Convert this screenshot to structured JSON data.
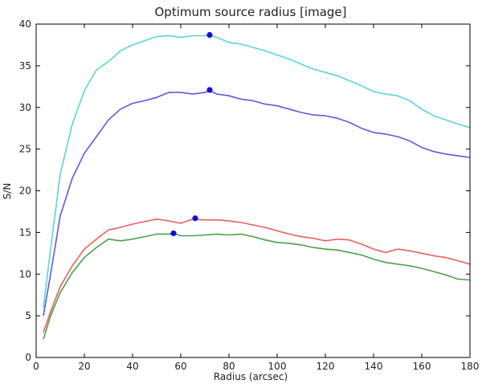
{
  "chart_data": {
    "type": "line",
    "title": "Optimum source radius [image]",
    "xlabel": "Radius (arcsec)",
    "ylabel": "S/N",
    "xlim": [
      0,
      180
    ],
    "ylim": [
      0,
      40
    ],
    "xticks": [
      0,
      20,
      40,
      60,
      80,
      100,
      120,
      140,
      160,
      180
    ],
    "yticks": [
      0,
      5,
      10,
      15,
      20,
      25,
      30,
      35,
      40
    ],
    "grid": false,
    "series": [
      {
        "color": "#5bd4d4",
        "x": [
          3,
          6,
          10,
          15,
          20,
          25,
          30,
          35,
          40,
          45,
          50,
          55,
          60,
          65,
          70,
          72,
          75,
          80,
          85,
          90,
          95,
          100,
          105,
          110,
          115,
          120,
          125,
          130,
          135,
          140,
          145,
          150,
          155,
          160,
          165,
          170,
          175,
          180
        ],
        "y": [
          6,
          13,
          22,
          28,
          32,
          34.5,
          35.5,
          36.8,
          37.5,
          38,
          38.5,
          38.6,
          38.4,
          38.6,
          38.6,
          38.7,
          38.4,
          37.8,
          37.6,
          37.2,
          36.8,
          36.3,
          35.8,
          35.2,
          34.6,
          34.2,
          33.8,
          33.2,
          32.6,
          31.9,
          31.6,
          31.4,
          30.8,
          29.8,
          29,
          28.5,
          28,
          27.6
        ],
        "optimum": {
          "x": 72,
          "y": 38.7
        }
      },
      {
        "color": "#5a5ae0",
        "x": [
          3,
          6,
          10,
          15,
          20,
          25,
          30,
          35,
          40,
          45,
          50,
          55,
          60,
          65,
          70,
          72,
          75,
          80,
          85,
          90,
          95,
          100,
          105,
          110,
          115,
          120,
          125,
          130,
          135,
          140,
          145,
          150,
          155,
          160,
          165,
          170,
          175,
          180
        ],
        "y": [
          5,
          10,
          17,
          21.5,
          24.5,
          26.5,
          28.5,
          29.8,
          30.5,
          30.8,
          31.2,
          31.8,
          31.8,
          31.6,
          31.8,
          32,
          31.6,
          31.4,
          31,
          30.8,
          30.4,
          30.2,
          29.8,
          29.4,
          29.1,
          29,
          28.7,
          28.2,
          27.5,
          27,
          26.8,
          26.5,
          26,
          25.2,
          24.7,
          24.4,
          24.2,
          24
        ],
        "optimum": {
          "x": 72,
          "y": 32.1
        }
      },
      {
        "color": "#e86060",
        "x": [
          3,
          6,
          10,
          15,
          20,
          25,
          30,
          35,
          40,
          45,
          50,
          55,
          60,
          65,
          70,
          75,
          80,
          85,
          90,
          95,
          100,
          105,
          110,
          115,
          120,
          125,
          130,
          135,
          140,
          145,
          150,
          155,
          160,
          165,
          170,
          175,
          180
        ],
        "y": [
          3,
          5.5,
          8.5,
          11,
          13,
          14.2,
          15.3,
          15.6,
          16,
          16.3,
          16.6,
          16.4,
          16.1,
          16.6,
          16.5,
          16.5,
          16.4,
          16.2,
          15.9,
          15.6,
          15.2,
          14.8,
          14.5,
          14.3,
          14,
          14.2,
          14.1,
          13.6,
          13,
          12.6,
          13,
          12.8,
          12.5,
          12.2,
          12,
          11.6,
          11.2
        ],
        "optimum": {
          "x": 66,
          "y": 16.7
        }
      },
      {
        "color": "#4aa04a",
        "x": [
          3,
          6,
          10,
          15,
          20,
          25,
          30,
          35,
          40,
          45,
          50,
          55,
          57,
          60,
          65,
          70,
          75,
          80,
          85,
          90,
          95,
          100,
          105,
          110,
          115,
          120,
          125,
          130,
          135,
          140,
          145,
          150,
          155,
          160,
          165,
          170,
          175,
          180
        ],
        "y": [
          2.2,
          5,
          7.8,
          10.2,
          12,
          13.2,
          14.2,
          14,
          14.2,
          14.5,
          14.8,
          14.8,
          14.9,
          14.6,
          14.6,
          14.7,
          14.8,
          14.7,
          14.8,
          14.5,
          14.1,
          13.8,
          13.7,
          13.5,
          13.2,
          13,
          12.9,
          12.6,
          12.3,
          11.8,
          11.4,
          11.2,
          11,
          10.7,
          10.3,
          9.9,
          9.4,
          9.3
        ],
        "optimum": {
          "x": 57,
          "y": 14.9
        }
      }
    ]
  }
}
